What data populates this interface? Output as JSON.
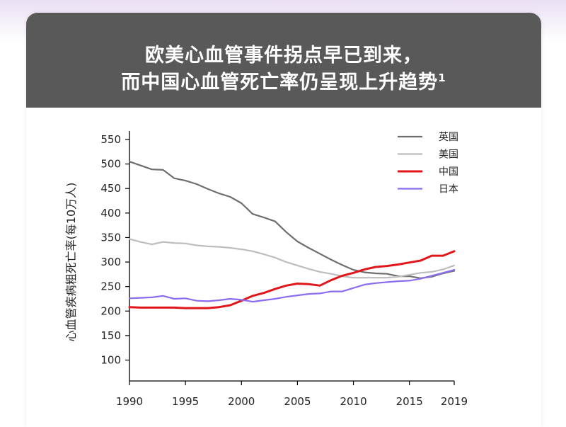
{
  "header": {
    "title_line1": "欧美心血管事件拐点早已到来，",
    "title_line2": "而中国心血管死亡率仍呈现上升趋势",
    "title_superscript": "1"
  },
  "colors": {
    "header_bg": "#595959",
    "uk": "#6e6e6e",
    "us": "#bdbdbd",
    "china": "#e0161b",
    "japan": "#8b6cf0"
  },
  "chart_data": {
    "type": "line",
    "title": "",
    "xlabel": "",
    "ylabel": "心血管疾病粗死亡率(每10万人)",
    "xlim": [
      1990,
      2019
    ],
    "ylim": [
      70,
      560
    ],
    "x_ticks": [
      1990,
      1995,
      2000,
      2005,
      2010,
      2015,
      2019
    ],
    "y_ticks": [
      100,
      150,
      200,
      250,
      300,
      350,
      400,
      450,
      500,
      550
    ],
    "grid": false,
    "legend_position": "top-right",
    "x": [
      1990,
      1991,
      1992,
      1993,
      1994,
      1995,
      1996,
      1997,
      1998,
      1999,
      2000,
      2001,
      2002,
      2003,
      2004,
      2005,
      2006,
      2007,
      2008,
      2009,
      2010,
      2011,
      2012,
      2013,
      2014,
      2015,
      2016,
      2017,
      2018,
      2019
    ],
    "series": [
      {
        "name": "英国",
        "color_key": "uk",
        "values": [
          505,
          497,
          489,
          488,
          471,
          466,
          459,
          449,
          440,
          433,
          420,
          398,
          391,
          383,
          361,
          342,
          329,
          317,
          305,
          294,
          284,
          279,
          277,
          276,
          271,
          271,
          267,
          270,
          277,
          282
        ]
      },
      {
        "name": "美国",
        "color_key": "us",
        "values": [
          347,
          341,
          336,
          341,
          339,
          338,
          334,
          332,
          331,
          329,
          326,
          322,
          316,
          309,
          300,
          293,
          286,
          280,
          276,
          271,
          268,
          268,
          268,
          268,
          270,
          274,
          278,
          280,
          285,
          293
        ]
      },
      {
        "name": "中国",
        "color_key": "china",
        "values": [
          208,
          207,
          207,
          207,
          207,
          206,
          206,
          206,
          208,
          212,
          221,
          231,
          237,
          245,
          252,
          256,
          255,
          252,
          263,
          272,
          278,
          285,
          290,
          292,
          295,
          299,
          303,
          313,
          313,
          322
        ]
      },
      {
        "name": "日本",
        "color_key": "japan",
        "values": [
          226,
          227,
          228,
          231,
          225,
          226,
          221,
          220,
          222,
          225,
          223,
          219,
          222,
          225,
          229,
          232,
          235,
          236,
          240,
          240,
          247,
          254,
          257,
          259,
          261,
          262,
          266,
          272,
          278,
          284
        ]
      }
    ]
  }
}
